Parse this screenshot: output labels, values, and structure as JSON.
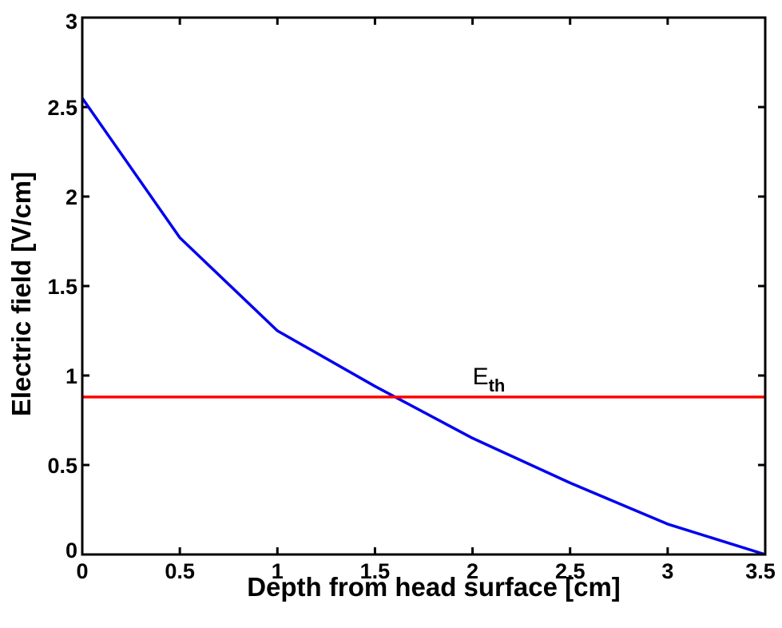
{
  "chart_data": {
    "type": "line",
    "title": "",
    "xlabel": "Depth from head surface [cm]",
    "ylabel": "Electric field [V/cm]",
    "xlim": [
      0,
      3.5
    ],
    "ylim": [
      0,
      3
    ],
    "xticks": [
      "0",
      "0.5",
      "1",
      "1.5",
      "2",
      "2.5",
      "3",
      "3.5"
    ],
    "yticks": [
      "0",
      "0.5",
      "1",
      "1.5",
      "2",
      "2.5",
      "3"
    ],
    "grid": false,
    "series": [
      {
        "color": "#0000ee",
        "x": [
          0,
          0.5,
          1,
          1.5,
          2,
          2.5,
          3,
          3.5
        ],
        "y": [
          2.55,
          1.77,
          1.25,
          0.94,
          0.65,
          0.4,
          0.17,
          0.0
        ]
      },
      {
        "color": "#ff0000",
        "x": [
          0,
          3.5
        ],
        "y": [
          0.88,
          0.88
        ]
      }
    ],
    "annotations": [
      {
        "text": "E",
        "subscript": "th",
        "x": 2.0,
        "y": 0.95
      }
    ]
  }
}
